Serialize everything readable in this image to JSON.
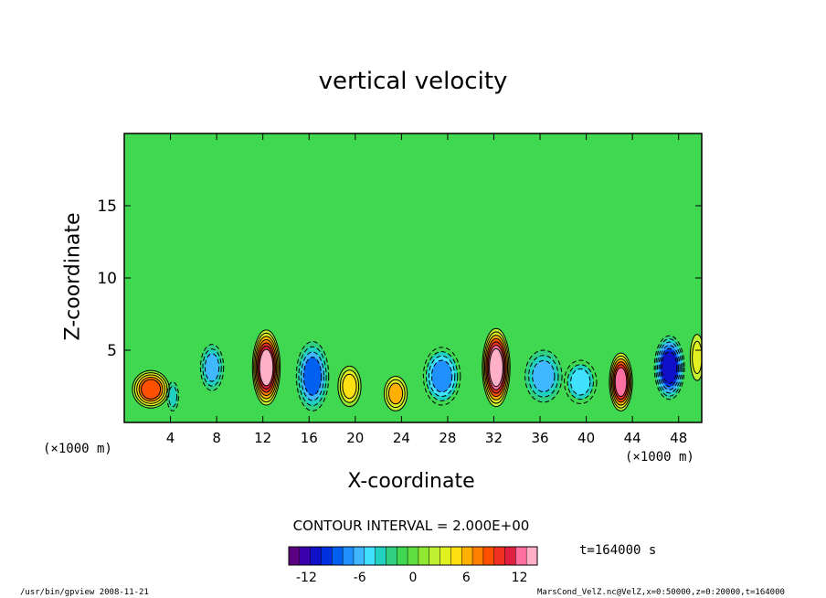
{
  "chart_data": {
    "type": "heatmap",
    "title": "vertical velocity",
    "xlabel": "X-coordinate",
    "ylabel": "Z-coordinate",
    "x_unit": "(×1000 m)",
    "y_unit": "(×1000 m)",
    "xlim": [
      0,
      50
    ],
    "ylim": [
      0,
      20
    ],
    "x_ticks": [
      4,
      8,
      12,
      16,
      20,
      24,
      28,
      32,
      36,
      40,
      44,
      48
    ],
    "y_ticks": [
      5,
      10,
      15
    ],
    "colorbar": {
      "range": [
        -14,
        14
      ],
      "ticks": [
        -12,
        -6,
        0,
        6,
        12
      ],
      "colors": [
        "#5a0080",
        "#3a00b0",
        "#1010c8",
        "#0030e0",
        "#0060f0",
        "#2090ff",
        "#40b8ff",
        "#40e0ff",
        "#20d0c0",
        "#30d080",
        "#40d850",
        "#60e040",
        "#90e830",
        "#c0f030",
        "#e0f020",
        "#ffe010",
        "#ffb000",
        "#ff8000",
        "#ff5000",
        "#f03020",
        "#e02040",
        "#ff70a0",
        "#ffb0c8"
      ]
    },
    "cells": [
      {
        "x": 2.3,
        "z": 2.3,
        "sx": 1.6,
        "sz": 1.3,
        "a": 9
      },
      {
        "x": 4.2,
        "z": 1.8,
        "sx": 0.5,
        "sz": 1.0,
        "a": -4
      },
      {
        "x": 7.6,
        "z": 3.8,
        "sx": 1.0,
        "sz": 1.6,
        "a": -6
      },
      {
        "x": 12.3,
        "z": 3.8,
        "sx": 1.2,
        "sz": 2.6,
        "a": 13
      },
      {
        "x": 16.3,
        "z": 3.2,
        "sx": 1.4,
        "sz": 2.4,
        "a": -8
      },
      {
        "x": 19.5,
        "z": 2.5,
        "sx": 1.0,
        "sz": 1.4,
        "a": 5
      },
      {
        "x": 23.5,
        "z": 2.0,
        "sx": 1.0,
        "sz": 1.2,
        "a": 6
      },
      {
        "x": 27.5,
        "z": 3.2,
        "sx": 1.6,
        "sz": 2.0,
        "a": -7
      },
      {
        "x": 32.2,
        "z": 3.8,
        "sx": 1.2,
        "sz": 2.7,
        "a": 14
      },
      {
        "x": 36.3,
        "z": 3.2,
        "sx": 1.6,
        "sz": 1.8,
        "a": -6
      },
      {
        "x": 39.5,
        "z": 2.8,
        "sx": 1.4,
        "sz": 1.5,
        "a": -5
      },
      {
        "x": 43.0,
        "z": 2.8,
        "sx": 1.0,
        "sz": 2.0,
        "a": 12
      },
      {
        "x": 47.2,
        "z": 3.8,
        "sx": 1.3,
        "sz": 2.2,
        "a": -11
      },
      {
        "x": 49.6,
        "z": 4.5,
        "sx": 0.6,
        "sz": 1.6,
        "a": 4
      }
    ],
    "contour_interval": "CONTOUR INTERVAL = 2.000E+00",
    "time": "t=164000 s"
  },
  "footer": {
    "left": "/usr/bin/gpview   2008-11-21",
    "right": "MarsCond_VelZ.nc@VelZ,x=0:50000,z=0:20000,t=164000"
  }
}
